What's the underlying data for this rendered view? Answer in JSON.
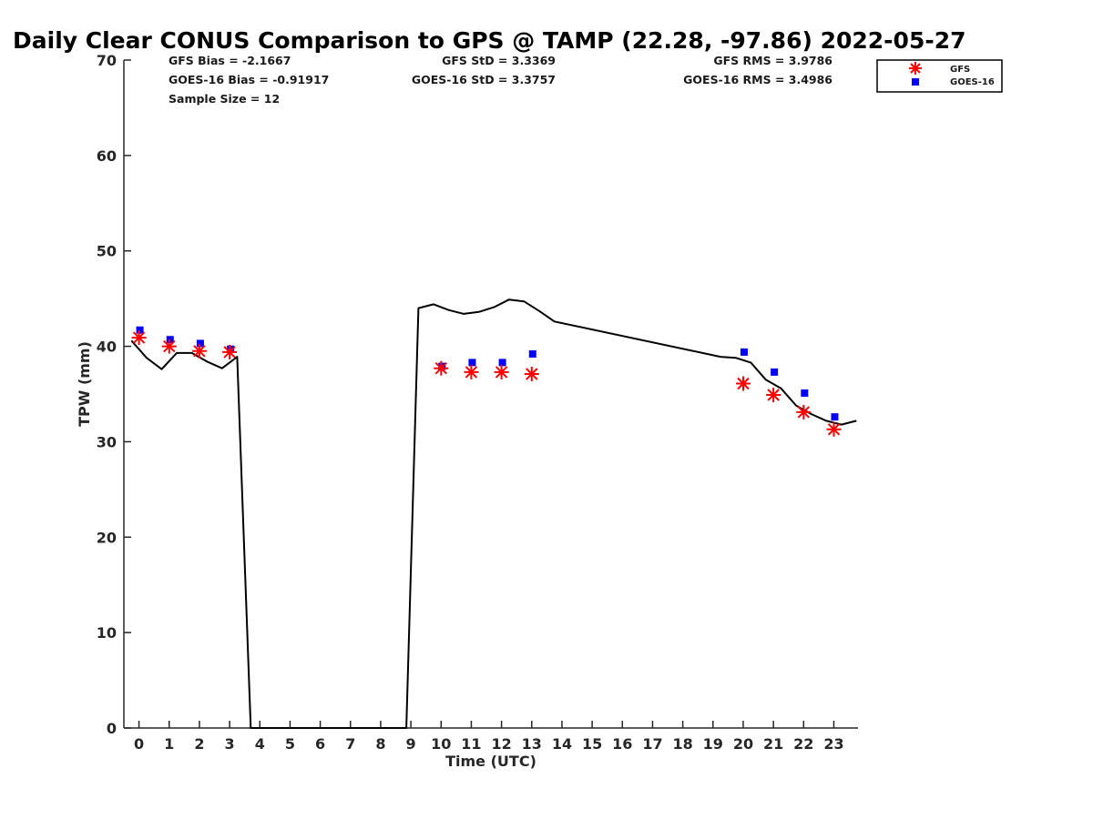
{
  "chart_data": {
    "type": "scatter",
    "title": "Daily Clear CONUS Comparison to GPS @ TAMP (22.28, -97.86) 2022-05-27",
    "xlabel": "Time (UTC)",
    "ylabel": "TPW (mm)",
    "xlim": [
      -0.5,
      23.8
    ],
    "ylim": [
      0,
      70
    ],
    "xticks": [
      0,
      1,
      2,
      3,
      4,
      5,
      6,
      7,
      8,
      9,
      10,
      11,
      12,
      13,
      14,
      15,
      16,
      17,
      18,
      19,
      20,
      21,
      22,
      23
    ],
    "yticks": [
      0,
      10,
      20,
      30,
      40,
      50,
      60,
      70
    ],
    "grid": false,
    "legend_position": "top-right",
    "stats": {
      "gfs_bias": "GFS Bias = -2.1667",
      "gfs_std": "GFS StD = 3.3369",
      "gfs_rms": "GFS RMS = 3.9786",
      "goes_bias": "GOES-16 Bias = -0.91917",
      "goes_std": "GOES-16 StD = 3.3757",
      "goes_rms": "GOES-16 RMS = 3.4986",
      "sample_size": "Sample Size = 12"
    },
    "series": [
      {
        "name": "GPS",
        "marker": "line",
        "color": "#000000",
        "x": [
          -0.25,
          0.25,
          0.75,
          1.25,
          1.75,
          2.25,
          2.75,
          3.25,
          3.7,
          8.85,
          9.25,
          9.75,
          10.25,
          10.75,
          11.25,
          11.75,
          12.25,
          12.75,
          13.25,
          13.75,
          19.25,
          19.75,
          20.25,
          20.75,
          21.25,
          21.75,
          22.25,
          22.75,
          23.25,
          23.75
        ],
        "y": [
          40.6,
          38.8,
          37.6,
          39.3,
          39.3,
          38.4,
          37.7,
          38.9,
          0,
          0,
          44.0,
          44.4,
          43.8,
          43.4,
          43.6,
          44.1,
          44.9,
          44.7,
          43.7,
          42.6,
          38.9,
          38.8,
          38.3,
          36.5,
          35.6,
          33.8,
          32.9,
          32.2,
          31.8,
          32.2
        ]
      },
      {
        "name": "GFS",
        "marker": "asterisk",
        "color": "#ff0000",
        "x": [
          0,
          1,
          2,
          3,
          10,
          11,
          12,
          13,
          20,
          21,
          22,
          23
        ],
        "y": [
          40.9,
          40.0,
          39.5,
          39.4,
          37.7,
          37.3,
          37.3,
          37.1,
          36.1,
          34.9,
          33.1,
          31.3
        ]
      },
      {
        "name": "GOES-16",
        "marker": "square",
        "color": "#0000ff",
        "x": [
          0,
          1,
          2,
          3,
          10,
          11,
          12,
          13,
          20,
          21,
          22,
          23
        ],
        "y": [
          41.7,
          40.7,
          40.3,
          39.7,
          37.9,
          38.3,
          38.3,
          39.2,
          39.4,
          37.3,
          35.1,
          32.6
        ]
      }
    ]
  }
}
